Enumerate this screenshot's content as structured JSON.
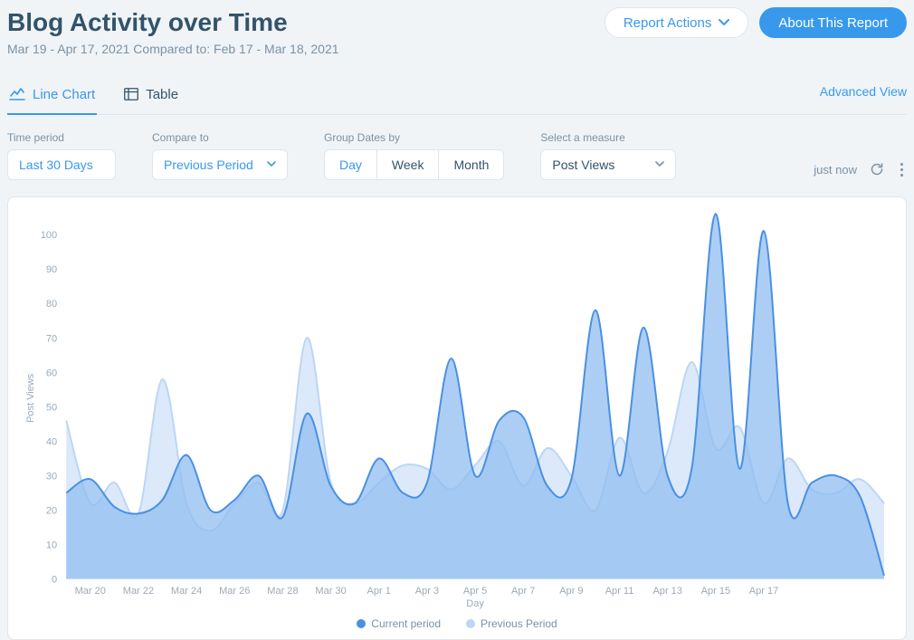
{
  "header": {
    "title": "Blog Activity over Time",
    "subtitle": "Mar 19 - Apr 17, 2021 Compared to: Feb 17 - Mar 18, 2021",
    "report_actions_label": "Report Actions",
    "about_report_label": "About This Report"
  },
  "tabs": {
    "line_chart": "Line Chart",
    "table": "Table",
    "advanced_view": "Advanced View"
  },
  "controls": {
    "time_period": {
      "label": "Time period",
      "value": "Last 30 Days"
    },
    "compare_to": {
      "label": "Compare to",
      "value": "Previous Period"
    },
    "group_by": {
      "label": "Group Dates by",
      "day": "Day",
      "week": "Week",
      "month": "Month"
    },
    "measure": {
      "label": "Select a measure",
      "value": "Post Views"
    },
    "refresh_text": "just now"
  },
  "legend": {
    "current": "Current period",
    "previous": "Previous Period"
  },
  "chart": {
    "type": "area",
    "ylabel": "Post Views",
    "xlabel": "Day",
    "ylim": [
      0,
      105
    ],
    "ytick_step": 10,
    "x_labels": [
      "Mar 20",
      "Mar 22",
      "Mar 24",
      "Mar 26",
      "Mar 28",
      "Mar 30",
      "Apr 1",
      "Apr 3",
      "Apr 5",
      "Apr 7",
      "Apr 9",
      "Apr 11",
      "Apr 13",
      "Apr 15",
      "Apr 17"
    ],
    "background_color": "#ffffff",
    "grid_color": "#ffffff",
    "axis_text_color": "#9aabbb",
    "series": {
      "current": {
        "stroke": "#4a90e2",
        "fill": "#92bef0",
        "fill_opacity": 0.75,
        "line_width": 2,
        "data": [
          25,
          29,
          21,
          19,
          23,
          36,
          20,
          23,
          30,
          18,
          48,
          27,
          22,
          35,
          25,
          28,
          64,
          30,
          46,
          47,
          27,
          29,
          78,
          30,
          73,
          30,
          32,
          106,
          32,
          101,
          22,
          28,
          30,
          24,
          1
        ]
      },
      "previous": {
        "stroke": "#bcd6f5",
        "fill": "#cfe1f8",
        "fill_opacity": 0.75,
        "line_width": 2,
        "data": [
          46,
          22,
          28,
          19,
          58,
          22,
          14,
          22,
          28,
          20,
          70,
          28,
          22,
          28,
          33,
          32,
          26,
          33,
          40,
          27,
          38,
          30,
          20,
          41,
          25,
          37,
          63,
          38,
          44,
          22,
          35,
          26,
          25,
          29,
          22
        ]
      }
    }
  }
}
